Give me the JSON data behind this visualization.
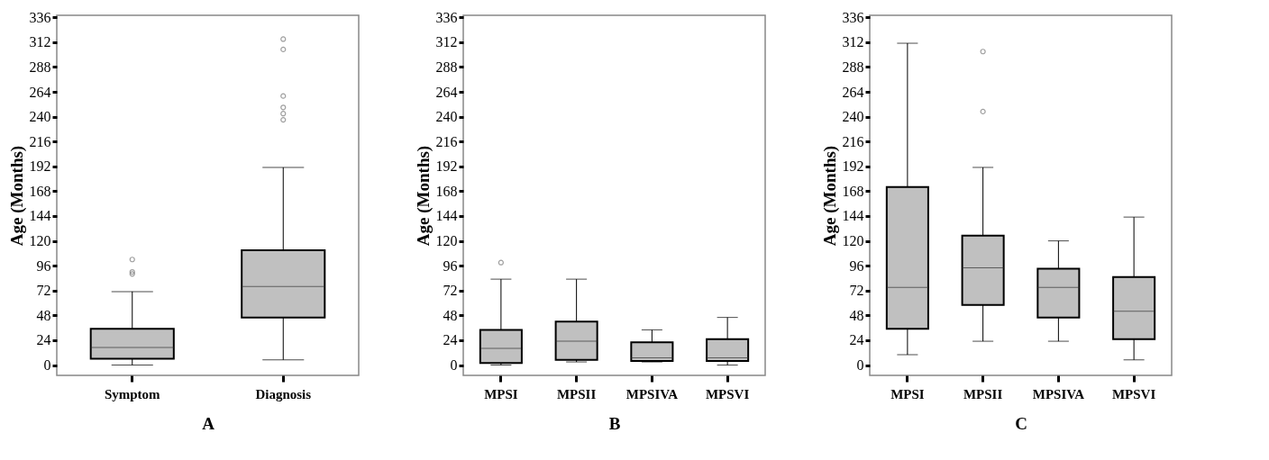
{
  "chart_data": [
    {
      "type": "box",
      "categories": [
        "Symptom",
        "Diagnosis"
      ],
      "xlabel": "A",
      "ylabel": "Age (Months)",
      "color": "#c0c0c0",
      "ylim": [
        -10,
        338
      ],
      "yticks": [
        0,
        24,
        48,
        72,
        96,
        120,
        144,
        168,
        192,
        216,
        240,
        264,
        288,
        312,
        336
      ],
      "boxes": [
        {
          "low": 0,
          "q1": 6,
          "median": 17,
          "q3": 35,
          "high": 71,
          "outliers": [
            88,
            90,
            102
          ]
        },
        {
          "low": 5,
          "q1": 46,
          "median": 76,
          "q3": 111,
          "high": 191,
          "outliers": [
            237,
            243,
            249,
            260,
            305,
            315
          ]
        }
      ]
    },
    {
      "type": "box",
      "categories": [
        "MPSI",
        "MPSII",
        "MPSIVA",
        "MPSVI"
      ],
      "xlabel": "B",
      "ylabel": "Age (Months)",
      "color": "#c0c0c0",
      "ylim": [
        -10,
        338
      ],
      "yticks": [
        0,
        24,
        48,
        72,
        96,
        120,
        144,
        168,
        192,
        216,
        240,
        264,
        288,
        312,
        336
      ],
      "boxes": [
        {
          "low": 0,
          "q1": 2,
          "median": 16,
          "q3": 34,
          "high": 83,
          "outliers": [
            99
          ]
        },
        {
          "low": 3,
          "q1": 5,
          "median": 23,
          "q3": 42,
          "high": 83
        },
        {
          "low": 3,
          "q1": 4,
          "median": 7,
          "q3": 22,
          "high": 34
        },
        {
          "low": 0,
          "q1": 4,
          "median": 7,
          "q3": 25,
          "high": 46
        }
      ]
    },
    {
      "type": "box",
      "categories": [
        "MPSI",
        "MPSII",
        "MPSIVA",
        "MPSVI"
      ],
      "xlabel": "C",
      "ylabel": "Age (Months)",
      "color": "#c0c0c0",
      "ylim": [
        -10,
        338
      ],
      "yticks": [
        0,
        24,
        48,
        72,
        96,
        120,
        144,
        168,
        192,
        216,
        240,
        264,
        288,
        312,
        336
      ],
      "boxes": [
        {
          "low": 10,
          "q1": 35,
          "median": 75,
          "q3": 172,
          "high": 311
        },
        {
          "low": 23,
          "q1": 58,
          "median": 94,
          "q3": 125,
          "high": 191,
          "outliers": [
            245,
            303
          ]
        },
        {
          "low": 23,
          "q1": 46,
          "median": 75,
          "q3": 93,
          "high": 120
        },
        {
          "low": 5,
          "q1": 25,
          "median": 52,
          "q3": 85,
          "high": 143
        }
      ]
    }
  ]
}
